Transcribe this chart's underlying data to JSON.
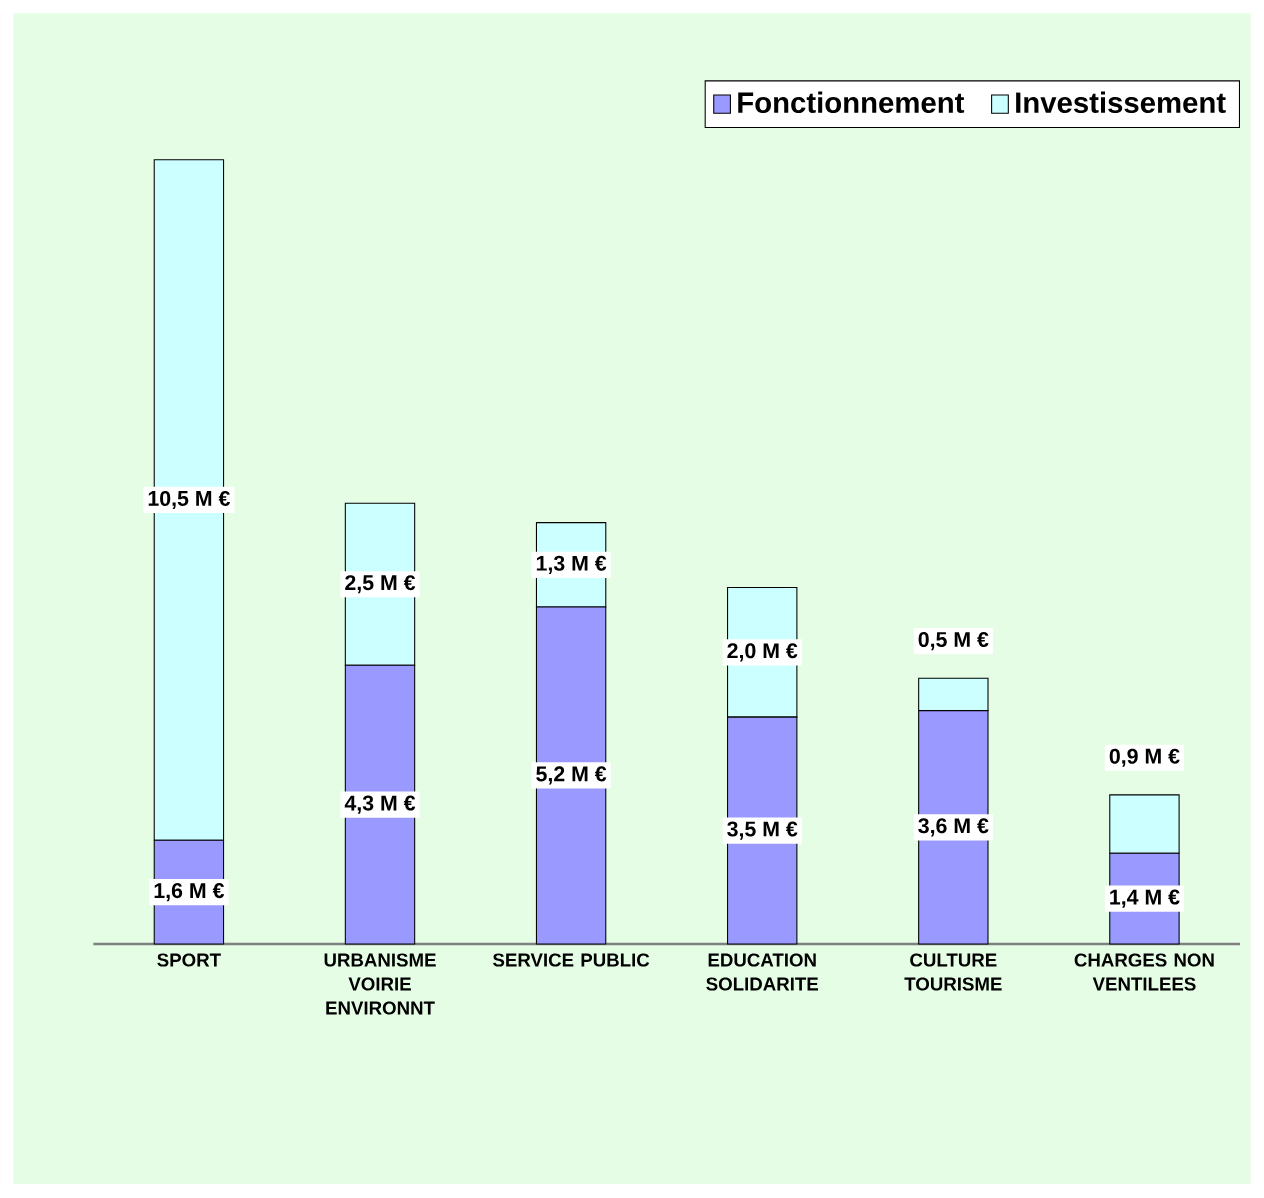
{
  "chart_data": {
    "type": "bar",
    "stacked": true,
    "legend": "top right",
    "categories": [
      "SPORT",
      "URBANISME VOIRIE ENVIRONNT",
      "SERVICE PUBLIC",
      "EDUCATION SOLIDARITE",
      "CULTURE TOURISME",
      "CHARGES NON VENTILEES"
    ],
    "series": [
      {
        "name": "Fonctionnement",
        "color": "#9999ff",
        "values": [
          1.6,
          4.3,
          5.2,
          3.5,
          3.6,
          1.4
        ],
        "value_labels": [
          "1,6 M €",
          "4,3 M €",
          "5,2 M €",
          "3,5 M €",
          "3,6 M €",
          "1,4 M €"
        ]
      },
      {
        "name": "Investissement",
        "color": "#ccffff",
        "values": [
          10.5,
          2.5,
          1.3,
          2.0,
          0.5,
          0.9
        ],
        "value_labels": [
          "10,5 M €",
          "2,5 M €",
          "1,3 M €",
          "2,0 M €",
          "0,5 M €",
          "0,9 M €"
        ]
      }
    ]
  }
}
